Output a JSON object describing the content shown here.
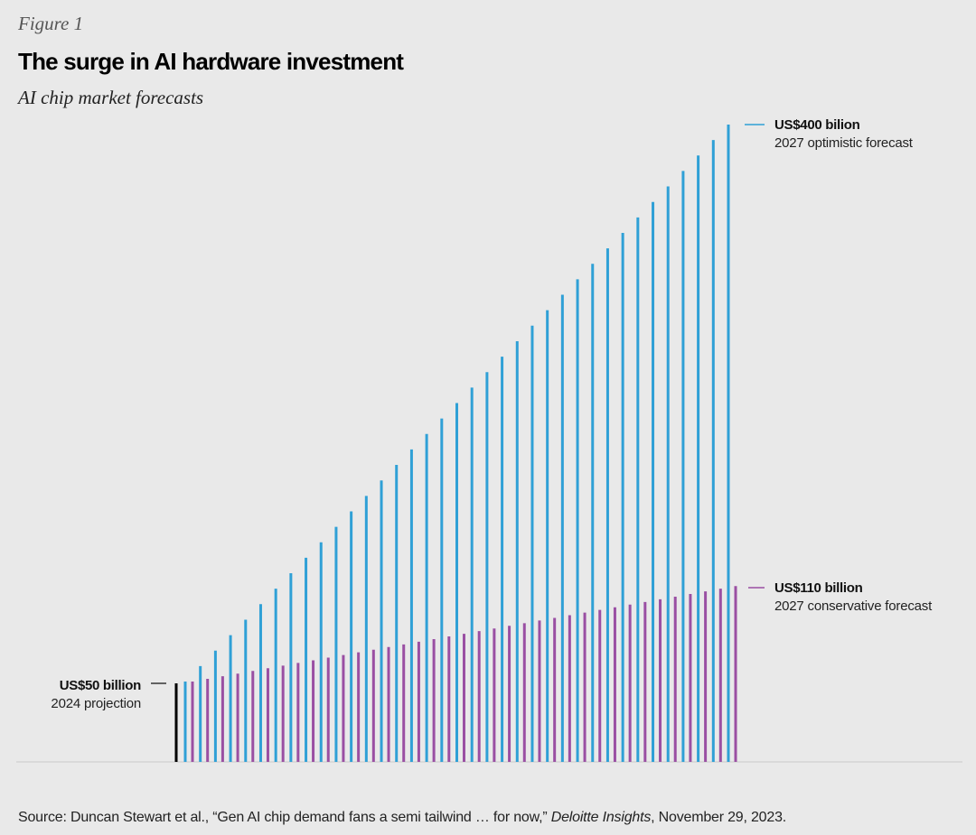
{
  "figure_label": "Figure 1",
  "chart_data": {
    "type": "bar",
    "title": "The surge in AI hardware investment",
    "subtitle": "AI chip market forecasts",
    "xlabel": "",
    "ylabel": "",
    "ylim": [
      0,
      400
    ],
    "grid": false,
    "bar_count": 37,
    "colors": {
      "optimistic": "#2fa0d6",
      "conservative": "#9a4fa3",
      "baseline": "#000000",
      "axis": "#c9c9c9"
    },
    "series": [
      {
        "name": "optimistic",
        "start_value": 50,
        "end_value": 400
      },
      {
        "name": "conservative",
        "start_value": 50,
        "end_value": 110
      }
    ],
    "annotations": {
      "start": {
        "value_label": "US$50 billion",
        "desc": "2024 projection",
        "value": 50
      },
      "optimistic": {
        "value_label": "US$400 bilion",
        "desc": "2027 optimistic forecast",
        "value": 400
      },
      "conservative": {
        "value_label": "US$110 billion",
        "desc": "2027 conservative forecast",
        "value": 110
      }
    }
  },
  "source": {
    "prefix": "Source: Duncan Stewart et al., “Gen AI chip demand fans a semi tailwind … for now,” ",
    "publication": "Deloitte Insights",
    "suffix": ", November 29, 2023."
  }
}
